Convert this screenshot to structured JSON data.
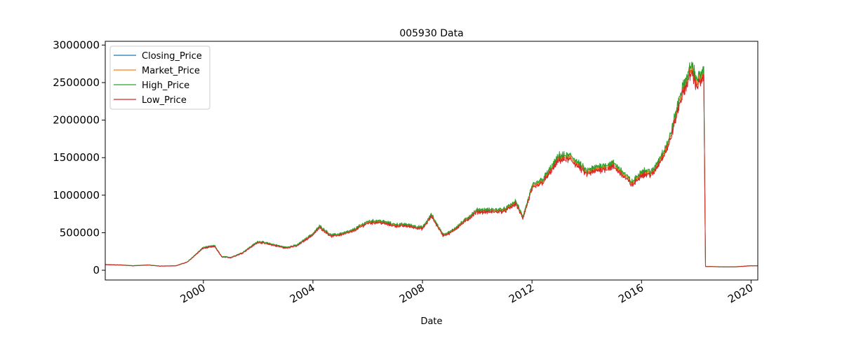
{
  "chart_data": {
    "type": "line",
    "title": "005930 Data",
    "xlabel": "Date",
    "ylabel": "",
    "xlim": [
      "1996-06-01",
      "2020-03-31"
    ],
    "ylim": [
      -130000,
      3050000
    ],
    "x_ticks": [
      "2000",
      "2004",
      "2008",
      "2012",
      "2016",
      "2020"
    ],
    "y_ticks": [
      0,
      500000,
      1000000,
      1500000,
      2000000,
      2500000,
      3000000
    ],
    "y_tick_labels": [
      "0",
      "500000",
      "1000000",
      "1500000",
      "2000000",
      "2500000",
      "3000000"
    ],
    "legend_position": "top-left",
    "grid": false,
    "series": [
      {
        "name": "Closing_Price",
        "color": "#1f77b4",
        "spread": 0.0
      },
      {
        "name": "Market_Price",
        "color": "#ff7f0e",
        "spread": 0.0
      },
      {
        "name": "High_Price",
        "color": "#2ca02c",
        "spread": 0.02
      },
      {
        "name": "Low_Price",
        "color": "#d62728",
        "spread": -0.02
      }
    ],
    "x": [
      "1996-06-01",
      "1997-01-01",
      "1997-06-01",
      "1998-01-01",
      "1998-06-01",
      "1999-01-01",
      "1999-06-01",
      "2000-01-01",
      "2000-06-01",
      "2000-09-01",
      "2001-01-01",
      "2001-06-01",
      "2002-01-01",
      "2002-06-01",
      "2003-01-01",
      "2003-06-01",
      "2004-01-01",
      "2004-04-01",
      "2004-09-01",
      "2005-01-01",
      "2005-06-01",
      "2006-01-01",
      "2006-06-01",
      "2007-01-01",
      "2007-06-01",
      "2008-01-01",
      "2008-05-01",
      "2008-10-01",
      "2009-01-01",
      "2009-06-01",
      "2010-01-01",
      "2010-06-01",
      "2011-01-01",
      "2011-06-01",
      "2011-09-01",
      "2012-01-01",
      "2012-06-01",
      "2013-01-01",
      "2013-06-01",
      "2014-01-01",
      "2014-06-01",
      "2015-01-01",
      "2015-06-01",
      "2015-09-01",
      "2016-01-01",
      "2016-06-01",
      "2017-01-01",
      "2017-06-01",
      "2017-11-01",
      "2018-01-01",
      "2018-04-10",
      "2018-05-04",
      "2018-06-01",
      "2019-01-01",
      "2019-06-01",
      "2020-01-01",
      "2020-03-31"
    ],
    "values": [
      75000,
      70000,
      60000,
      70000,
      55000,
      60000,
      110000,
      300000,
      320000,
      180000,
      170000,
      230000,
      380000,
      350000,
      300000,
      330000,
      480000,
      580000,
      460000,
      480000,
      520000,
      640000,
      650000,
      600000,
      600000,
      560000,
      730000,
      470000,
      500000,
      620000,
      790000,
      790000,
      800000,
      900000,
      700000,
      1100000,
      1200000,
      1500000,
      1500000,
      1300000,
      1360000,
      1400000,
      1250000,
      1150000,
      1300000,
      1300000,
      1700000,
      2300000,
      2700000,
      2500000,
      2600000,
      50000,
      50000,
      45000,
      45000,
      60000,
      60000
    ]
  }
}
